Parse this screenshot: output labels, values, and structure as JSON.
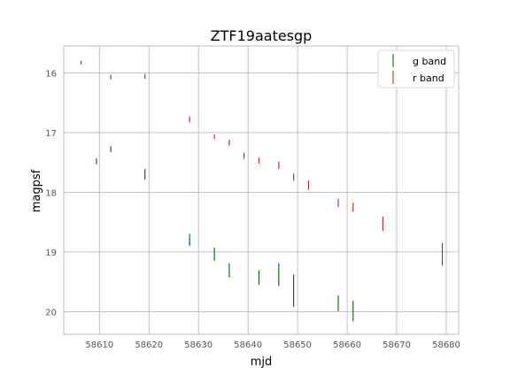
{
  "chart_data": {
    "type": "scatter",
    "title": "ZTF19aatesgp",
    "xlabel": "mjd",
    "ylabel": "magpsf",
    "xlim": [
      58602.8,
      58682.5
    ],
    "ylim": [
      15.55,
      20.38
    ],
    "y_inverted": true,
    "grid": true,
    "legend_position": "top-right",
    "xticks": [
      58610,
      58620,
      58630,
      58640,
      58650,
      58660,
      58670,
      58680
    ],
    "yticks": [
      16,
      17,
      18,
      19,
      20
    ],
    "series": [
      {
        "name": "g band",
        "color": "#006400",
        "marker": "errorbar",
        "points": [
          {
            "x": 58609.4,
            "y": 17.48,
            "err": 0.05
          },
          {
            "x": 58612.3,
            "y": 17.28,
            "err": 0.05
          },
          {
            "x": 58619.2,
            "y": 17.7,
            "err": 0.09
          },
          {
            "x": 58628.2,
            "y": 18.8,
            "err": 0.1
          },
          {
            "x": 58633.2,
            "y": 19.04,
            "err": 0.11
          },
          {
            "x": 58636.2,
            "y": 19.31,
            "err": 0.12
          },
          {
            "x": 58642.2,
            "y": 19.43,
            "err": 0.12
          },
          {
            "x": 58646.2,
            "y": 19.38,
            "err": 0.19
          },
          {
            "x": 58649.2,
            "y": 19.65,
            "err": 0.27
          },
          {
            "x": 58658.2,
            "y": 19.86,
            "err": 0.13
          },
          {
            "x": 58661.2,
            "y": 19.99,
            "err": 0.17
          }
        ]
      },
      {
        "name": "r band",
        "color": "#b22222",
        "marker": "errorbar",
        "points": [
          {
            "x": 58606.3,
            "y": 15.83,
            "err": 0.03
          },
          {
            "x": 58612.3,
            "y": 16.07,
            "err": 0.04
          },
          {
            "x": 58619.2,
            "y": 16.06,
            "err": 0.04
          },
          {
            "x": 58628.2,
            "y": 16.78,
            "err": 0.05
          },
          {
            "x": 58633.2,
            "y": 17.07,
            "err": 0.04
          },
          {
            "x": 58636.2,
            "y": 17.17,
            "err": 0.05
          },
          {
            "x": 58639.2,
            "y": 17.39,
            "err": 0.05
          },
          {
            "x": 58642.2,
            "y": 17.47,
            "err": 0.05
          },
          {
            "x": 58646.2,
            "y": 17.55,
            "err": 0.06
          },
          {
            "x": 58649.2,
            "y": 17.75,
            "err": 0.06
          },
          {
            "x": 58652.2,
            "y": 17.88,
            "err": 0.08
          },
          {
            "x": 58658.2,
            "y": 18.18,
            "err": 0.07
          },
          {
            "x": 58661.2,
            "y": 18.25,
            "err": 0.07
          },
          {
            "x": 58667.2,
            "y": 18.53,
            "err": 0.12
          },
          {
            "x": 58679.2,
            "y": 19.04,
            "err": 0.19
          }
        ]
      }
    ]
  }
}
